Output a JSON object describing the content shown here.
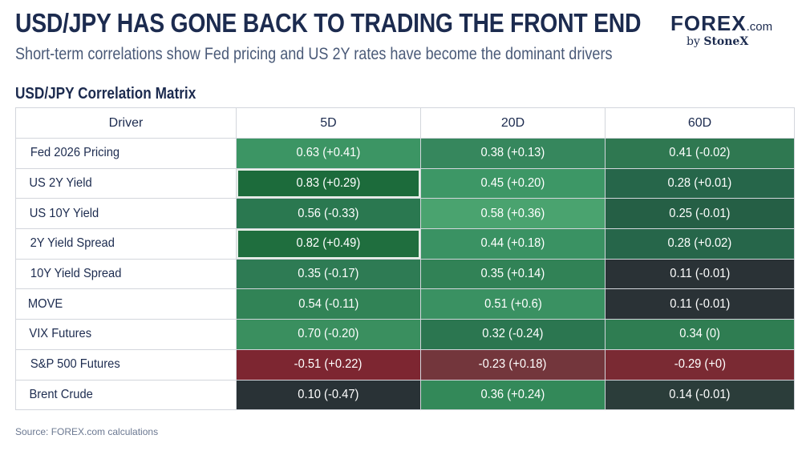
{
  "title": "USD/JPY HAS GONE BACK TO TRADING THE FRONT END",
  "subtitle": "Short-term correlations show Fed pricing and US 2Y rates have become the dominant drivers",
  "logo": {
    "brand": "FOREX",
    "suffix": ".com",
    "by": "by",
    "parent": "StoneX"
  },
  "matrix_title": "USD/JPY Correlation Matrix",
  "source": "Source: FOREX.com calculations",
  "chart_data": {
    "type": "table",
    "title": "USD/JPY Correlation Matrix",
    "columns": [
      "Driver",
      "5D",
      "20D",
      "60D"
    ],
    "rows": [
      {
        "driver": "Fed 2026 Pricing",
        "cells": [
          {
            "label": "0.63 (+0.41)",
            "corr": 0.63,
            "change": 0.41,
            "color": "#3c9564",
            "highlight": false
          },
          {
            "label": "0.38 (+0.13)",
            "corr": 0.38,
            "change": 0.13,
            "color": "#36875d",
            "highlight": false
          },
          {
            "label": "0.41 (-0.02)",
            "corr": 0.41,
            "change": -0.02,
            "color": "#2f7851",
            "highlight": false
          }
        ]
      },
      {
        "driver": "US 2Y Yield",
        "cells": [
          {
            "label": "0.83 (+0.29)",
            "corr": 0.83,
            "change": 0.29,
            "color": "#1c6b3b",
            "highlight": true
          },
          {
            "label": "0.45 (+0.20)",
            "corr": 0.45,
            "change": 0.2,
            "color": "#3d9766",
            "highlight": false
          },
          {
            "label": "0.28 (+0.01)",
            "corr": 0.28,
            "change": 0.01,
            "color": "#26664a",
            "highlight": false
          }
        ]
      },
      {
        "driver": "US 10Y Yield",
        "cells": [
          {
            "label": "0.56 (-0.33)",
            "corr": 0.56,
            "change": -0.33,
            "color": "#2a7850",
            "highlight": false
          },
          {
            "label": "0.58 (+0.36)",
            "corr": 0.58,
            "change": 0.36,
            "color": "#4aa36f",
            "highlight": false
          },
          {
            "label": "0.25 (-0.01)",
            "corr": 0.25,
            "change": -0.01,
            "color": "#255f45",
            "highlight": false
          }
        ]
      },
      {
        "driver": "2Y Yield Spread",
        "cells": [
          {
            "label": "0.82 (+0.49)",
            "corr": 0.82,
            "change": 0.49,
            "color": "#1f6e3e",
            "highlight": true
          },
          {
            "label": "0.44 (+0.18)",
            "corr": 0.44,
            "change": 0.18,
            "color": "#3a9263",
            "highlight": false
          },
          {
            "label": "0.28 (+0.02)",
            "corr": 0.28,
            "change": 0.02,
            "color": "#26664a",
            "highlight": false
          }
        ]
      },
      {
        "driver": "10Y Yield Spread",
        "cells": [
          {
            "label": "0.35 (-0.17)",
            "corr": 0.35,
            "change": -0.17,
            "color": "#2e7b54",
            "highlight": false
          },
          {
            "label": "0.35 (+0.14)",
            "corr": 0.35,
            "change": 0.14,
            "color": "#318256",
            "highlight": false
          },
          {
            "label": "0.11 (-0.01)",
            "corr": 0.11,
            "change": -0.01,
            "color": "#2a3236",
            "highlight": false
          }
        ]
      },
      {
        "driver": "MOVE",
        "cells": [
          {
            "label": "0.54 (-0.11)",
            "corr": 0.54,
            "change": -0.11,
            "color": "#318356",
            "highlight": false
          },
          {
            "label": "0.51 (+0.6)",
            "corr": 0.51,
            "change": 0.6,
            "color": "#3a9162",
            "highlight": false
          },
          {
            "label": "0.11 (-0.01)",
            "corr": 0.11,
            "change": -0.01,
            "color": "#2a3236",
            "highlight": false
          }
        ]
      },
      {
        "driver": "VIX Futures",
        "cells": [
          {
            "label": "0.70 (-0.20)",
            "corr": 0.7,
            "change": -0.2,
            "color": "#3a8f5f",
            "highlight": false
          },
          {
            "label": "0.32 (-0.24)",
            "corr": 0.32,
            "change": -0.24,
            "color": "#2b7650",
            "highlight": false
          },
          {
            "label": "0.34 (0)",
            "corr": 0.34,
            "change": 0,
            "color": "#2f7d52",
            "highlight": false
          }
        ]
      },
      {
        "driver": "S&P 500 Futures",
        "cells": [
          {
            "label": "-0.51 (+0.22)",
            "corr": -0.51,
            "change": 0.22,
            "color": "#7d2631",
            "highlight": false
          },
          {
            "label": "-0.23 (+0.18)",
            "corr": -0.23,
            "change": 0.18,
            "color": "#73363c",
            "highlight": false
          },
          {
            "label": "-0.29 (+0)",
            "corr": -0.29,
            "change": 0,
            "color": "#7a2a33",
            "highlight": false
          }
        ]
      },
      {
        "driver": "Brent Crude",
        "cells": [
          {
            "label": "0.10 (-0.47)",
            "corr": 0.1,
            "change": -0.47,
            "color": "#293236",
            "highlight": false
          },
          {
            "label": "0.36 (+0.24)",
            "corr": 0.36,
            "change": 0.24,
            "color": "#338959",
            "highlight": false
          },
          {
            "label": "0.14 (-0.01)",
            "corr": 0.14,
            "change": -0.01,
            "color": "#2b3d3a",
            "highlight": false
          }
        ]
      }
    ]
  }
}
